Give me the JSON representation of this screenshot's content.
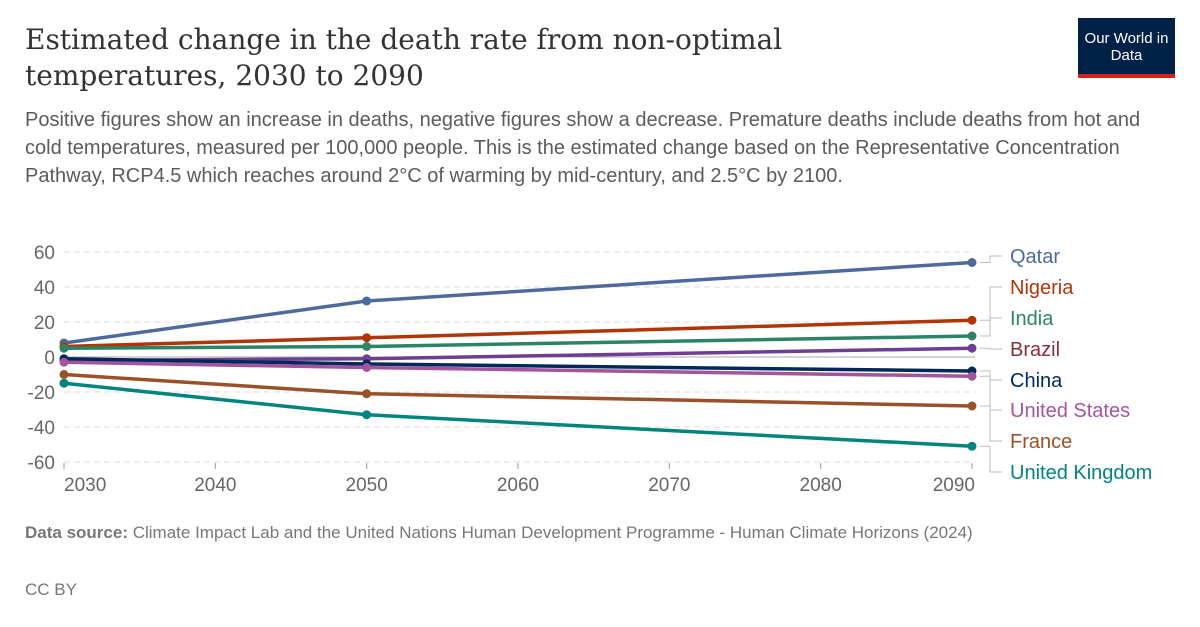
{
  "title": "Estimated change in the death rate from non-optimal temperatures, 2030 to 2090",
  "subtitle": "Positive figures show an increase in deaths, negative figures show a decrease. Premature deaths include deaths from hot and cold temperatures, measured per 100,000 people. This is the estimated change based on the Representative Concentration Pathway, RCP4.5 which reaches around 2°C of warming by mid-century, and 2.5°C by 2100.",
  "logo": "Our World in Data",
  "source_label": "Data source:",
  "source": "Climate Impact Lab and the United Nations Human Development Programme - Human Climate Horizons (2024)",
  "license": "CC BY",
  "chart_data": {
    "type": "line",
    "x": [
      2030,
      2050,
      2090
    ],
    "xlim": [
      2030,
      2090
    ],
    "ylim": [
      -60,
      60
    ],
    "xticks": [
      "2030",
      "2040",
      "2050",
      "2060",
      "2070",
      "2080",
      "2090"
    ],
    "yticks": [
      "60",
      "40",
      "20",
      "0",
      "-20",
      "-40",
      "-60"
    ],
    "grid": true,
    "legend": "right-labels",
    "series": [
      {
        "name": "Qatar",
        "color": "#4c6a9c",
        "label_color": "#4c6a9c",
        "values": [
          8,
          32,
          54
        ]
      },
      {
        "name": "Nigeria",
        "color": "#b13507",
        "label_color": "#b13507",
        "values": [
          6,
          11,
          21
        ]
      },
      {
        "name": "India",
        "color": "#2c8465",
        "label_color": "#2c8465",
        "values": [
          5,
          6,
          12
        ]
      },
      {
        "name": "Brazil",
        "color": "#6d3e91",
        "label_color": "#883039",
        "values": [
          -2,
          -1,
          5
        ]
      },
      {
        "name": "China",
        "color": "#00295b",
        "label_color": "#00295b",
        "values": [
          -1,
          -4,
          -8
        ]
      },
      {
        "name": "United States",
        "color": "#a2559c",
        "label_color": "#a2559c",
        "values": [
          -3,
          -6,
          -11
        ]
      },
      {
        "name": "France",
        "color": "#9a5129",
        "label_color": "#9a5129",
        "values": [
          -10,
          -21,
          -28
        ]
      },
      {
        "name": "United Kingdom",
        "color": "#00847e",
        "label_color": "#00847e",
        "values": [
          -15,
          -33,
          -51
        ]
      }
    ]
  }
}
